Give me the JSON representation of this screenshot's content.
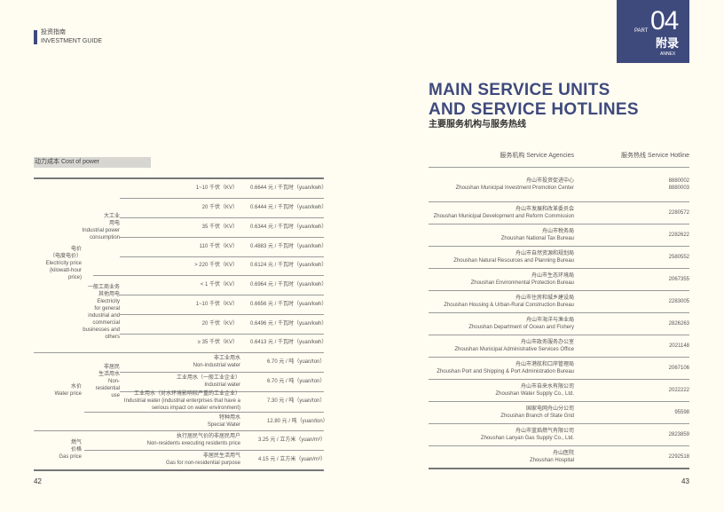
{
  "header": {
    "cn": "投资指南",
    "en": "INVESTMENT GUIDE"
  },
  "part": {
    "label": "PART",
    "number": "04",
    "cn": "附录",
    "en": "ANNEX"
  },
  "title": {
    "line1": "MAIN SERVICE UNITS",
    "line2": "AND SERVICE HOTLINES",
    "cn": "主要服务机构与服务热线"
  },
  "left": {
    "section_label": "动力成本  Cost of power",
    "electricity": {
      "label": [
        "电价",
        "（电度电价）",
        "Electricity price",
        "(kilowatt-hour",
        "price)"
      ],
      "industrial": {
        "label": [
          "大工业",
          "用电",
          "Industrial power",
          "consumption"
        ],
        "rows": [
          [
            "1~10 千伏（KV）",
            "0.6644 元 / 千瓦时（yuan/kwh）"
          ],
          [
            "20 千伏（KV）",
            "0.6444 元 / 千瓦时（yuan/kwh）"
          ],
          [
            "35 千伏（KV）",
            "0.6344 元 / 千瓦时（yuan/kwh）"
          ],
          [
            "110 千伏（KV）",
            "0.4883 元 / 千瓦时（yuan/kwh）"
          ],
          [
            "> 220 千伏（KV）",
            "0.6124 元 / 千瓦时（yuan/kwh）"
          ]
        ]
      },
      "general": {
        "label": [
          "一般工商业务",
          "其他用电",
          "Electricity",
          "for general",
          "industrial and",
          "commercial",
          "businesses and",
          "others"
        ],
        "rows": [
          [
            "< 1 千伏（KV）",
            "0.6964 元 / 千瓦时（yuan/kwh）"
          ],
          [
            "1~10 千伏（KV）",
            "0.6656 元 / 千瓦时（yuan/kwh）"
          ],
          [
            "20 千伏（KV）",
            "0.6496 元 / 千瓦时（yuan/kwh）"
          ],
          [
            "≥ 35 千伏（KV）",
            "0.6413 元 / 千瓦时（yuan/kwh）"
          ]
        ]
      }
    },
    "water": {
      "label": [
        "水价",
        "Water price"
      ],
      "nonres": {
        "label": [
          "非居民",
          "生活用水",
          "Non-",
          "residential",
          "use"
        ]
      },
      "rows": [
        [
          [
            "非工业用水",
            "Non-industrial water"
          ],
          "6.70 元 / 吨（yuan/ton）"
        ],
        [
          [
            "工业用水（一般工业企业）",
            "Industrial water"
          ],
          "6.70 元 / 吨（yuan/ton）"
        ],
        [
          [
            "工业用水（对水环境影响较严重的工业企业）",
            "Industrial water (industrial enterprises that have a",
            "serious impact on water environment)"
          ],
          "7.30 元 / 吨（yuan/ton）"
        ],
        [
          [
            "特种用水",
            "Special Water"
          ],
          "12.80 元 / 吨（yuan/ton）"
        ]
      ]
    },
    "gas": {
      "label": [
        "燃气",
        "价格",
        "Gas price"
      ],
      "rows": [
        [
          [
            "执行居民气价的非居民用户",
            "Non-residents executing residents price"
          ],
          "3.25 元 / 立方米（yuan/m³）"
        ],
        [
          [
            "非居民生活用气",
            "Gas for non-residential purpose"
          ],
          "4.15 元 / 立方米（yuan/m³）"
        ]
      ]
    },
    "page": "42"
  },
  "right": {
    "col_agency": "服务机构  Service Agencies",
    "col_hotline": "服务热线  Service Hotline",
    "rows": [
      [
        "舟山市投资促进中心",
        "Zhoushan Municipal Investment Promotion Center",
        "8880002\n8880003"
      ],
      [
        "舟山市发展和改革委员会",
        "Zhoushan Municipal Development and Reform Commission",
        "2280572"
      ],
      [
        "舟山市税务局",
        "Zhoushan National Tax Bureau",
        "2282622"
      ],
      [
        "舟山市自然资源和规划局",
        "Zhoushan Natural Resources and Planning Bureau",
        "2580552"
      ],
      [
        "舟山市生态环境局",
        "Zhoushan Environmental Protection Bureau",
        "2067355"
      ],
      [
        "舟山市住房和城乡建设局",
        "Zhoushan Housing & Urban-Rural Construction Bureau",
        "2283005"
      ],
      [
        "舟山市海洋与渔业局",
        "Zhoushan Department of Ocean and Fishery",
        "2826263"
      ],
      [
        "舟山市政务服务办公室",
        "Zhoushan Municipal Administrative Services Office",
        "2021148"
      ],
      [
        "舟山市港航和口岸管理局",
        "Zhoushan Port and Shipping & Port Administration Bureau",
        "2067106"
      ],
      [
        "舟山市自来水有限公司",
        "Zhoushan Water Supply Co., Ltd.",
        "2022222"
      ],
      [
        "国家电网舟山分公司",
        "Zhoushan Branch of State Grid",
        "95598"
      ],
      [
        "舟山市蓝焰燃气有限公司",
        "Zhoushan Lanyan Gas Supply Co., Ltd.",
        "2823859"
      ],
      [
        "舟山医院",
        "Zhoushan Hospital",
        "2292518"
      ]
    ],
    "page": "43"
  },
  "colors": {
    "navy": "#3f4a7c",
    "background": "#fffdf2"
  }
}
